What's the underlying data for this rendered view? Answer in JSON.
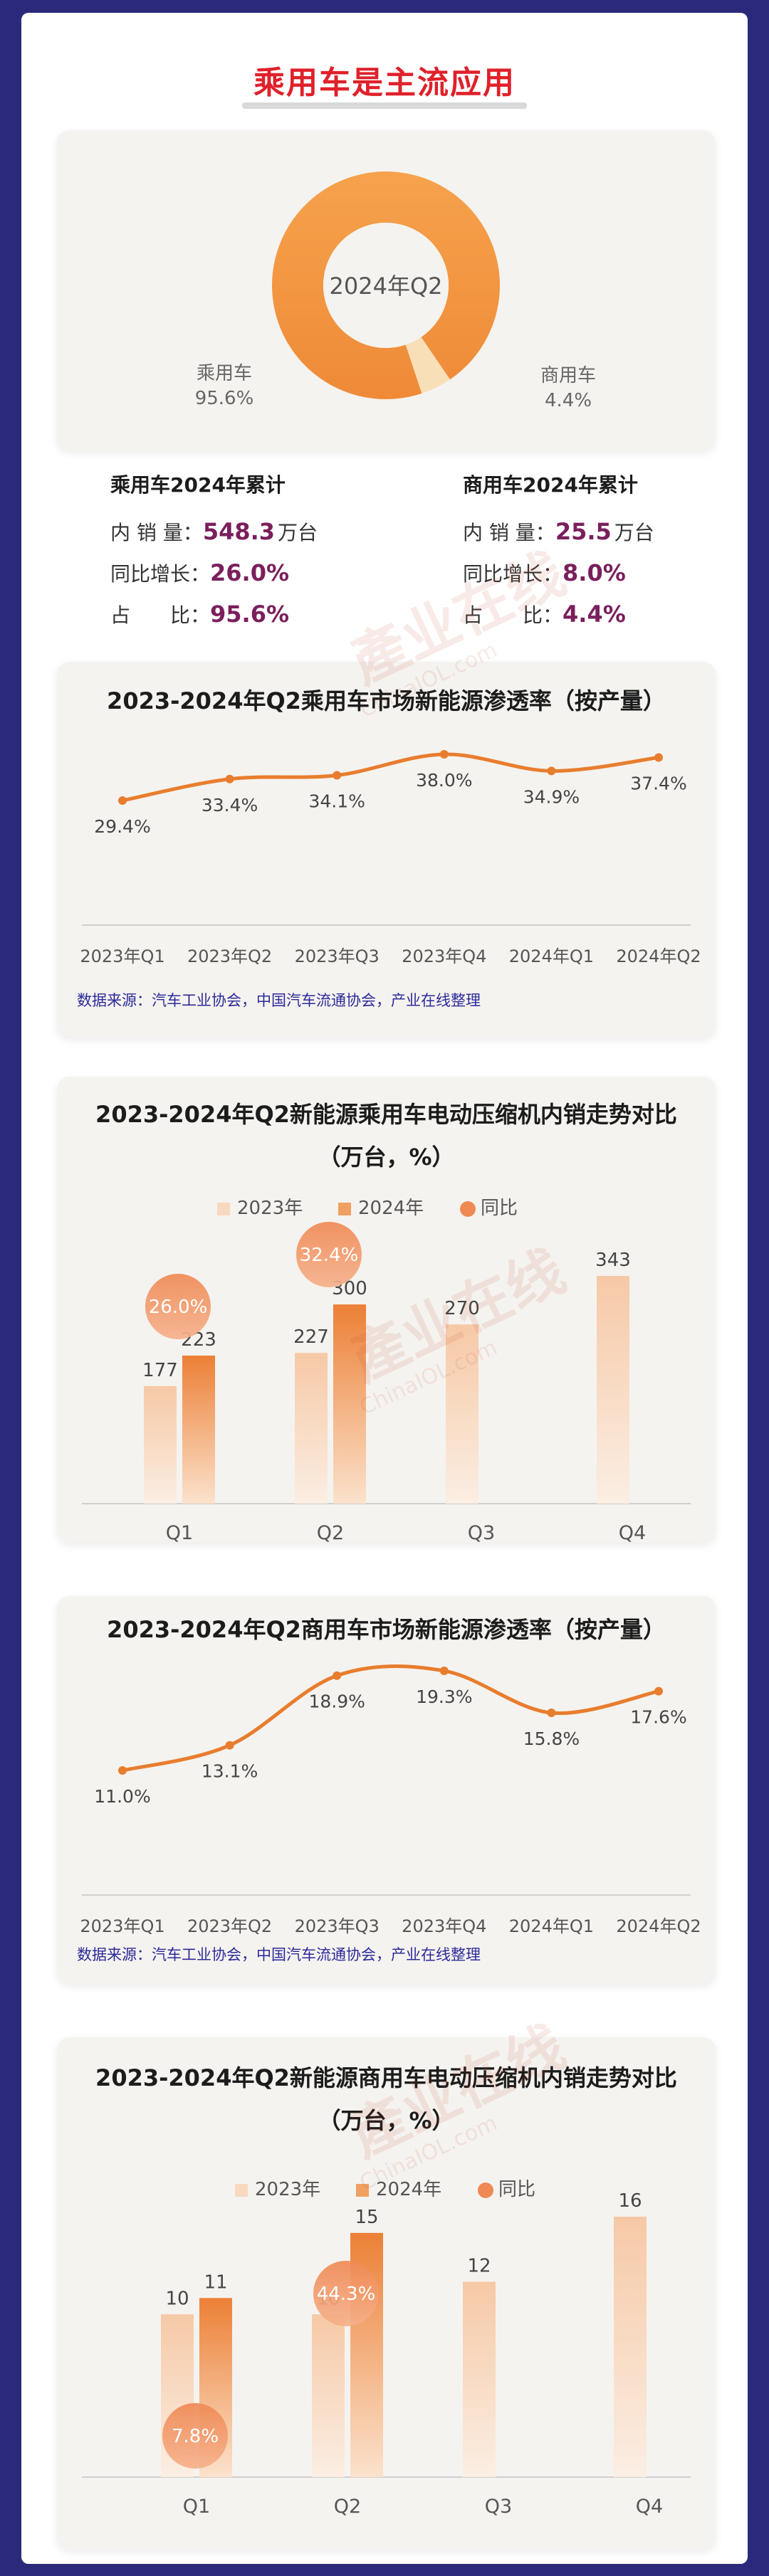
{
  "title": "乘用车是主流应用",
  "donut": {
    "center_label": "2024年Q2",
    "slices": [
      {
        "label": "乘用车",
        "pct": "95.6%",
        "value": 95.6,
        "color": "#f0933c"
      },
      {
        "label": "商用车",
        "pct": "4.4%",
        "value": 4.4,
        "color": "#f8dfb8"
      }
    ]
  },
  "stats": {
    "passenger": {
      "head": "乘用车2024年累计",
      "rows": [
        {
          "label": "内 销 量：",
          "value": "548.3",
          "unit": "万台"
        },
        {
          "label": "同比增长：",
          "value": "26.0%",
          "unit": ""
        },
        {
          "label": "占　　比：",
          "value": "95.6%",
          "unit": ""
        }
      ]
    },
    "commercial": {
      "head": "商用车2024年累计",
      "rows": [
        {
          "label": "内 销 量：",
          "value": "25.5",
          "unit": "万台"
        },
        {
          "label": "同比增长：",
          "value": "8.0%",
          "unit": ""
        },
        {
          "label": "占　　比：",
          "value": "4.4%",
          "unit": ""
        }
      ]
    }
  },
  "source_text": "数据来源：汽车工业协会，中国汽车流通协会，产业在线整理",
  "watermark": {
    "main": "产业在线",
    "sub": "ChinaIOL.com"
  },
  "colors": {
    "accent_orange": "#e87d2e",
    "light_peach": "#f8d9bf",
    "title_red": "#e0202a",
    "value_purple": "#7a1f5c",
    "frame": "#2b2a7a"
  },
  "chart_data": [
    {
      "type": "line",
      "title": "2023-2024年Q2乘用车市场新能源渗透率（按产量）",
      "categories": [
        "2023年Q1",
        "2023年Q2",
        "2023年Q3",
        "2023年Q4",
        "2024年Q1",
        "2024年Q2"
      ],
      "values": [
        29.4,
        33.4,
        34.1,
        38.0,
        34.9,
        37.4
      ],
      "labels": [
        "29.4%",
        "33.4%",
        "34.1%",
        "38.0%",
        "34.9%",
        "37.4%"
      ],
      "ylim": [
        0,
        45
      ]
    },
    {
      "type": "bar",
      "title": "2023-2024年Q2新能源乘用车电动压缩机内销走势对比",
      "subtitle": "（万台，%）",
      "legend": [
        "2023年",
        "2024年",
        "同比"
      ],
      "categories": [
        "Q1",
        "Q2",
        "Q3",
        "Q4"
      ],
      "series": [
        {
          "name": "2023年",
          "values": [
            177,
            227,
            270,
            343
          ]
        },
        {
          "name": "2024年",
          "values": [
            223,
            300,
            null,
            null
          ]
        }
      ],
      "yoy": [
        {
          "category": "Q1",
          "value": 26.0,
          "label": "26.0%"
        },
        {
          "category": "Q2",
          "value": 32.4,
          "label": "32.4%"
        }
      ],
      "ylim": [
        0,
        400
      ]
    },
    {
      "type": "line",
      "title": "2023-2024年Q2商用车市场新能源渗透率（按产量）",
      "categories": [
        "2023年Q1",
        "2023年Q2",
        "2023年Q3",
        "2023年Q4",
        "2024年Q1",
        "2024年Q2"
      ],
      "values": [
        11.0,
        13.1,
        18.9,
        19.3,
        15.8,
        17.6
      ],
      "labels": [
        "11.0%",
        "13.1%",
        "18.9%",
        "19.3%",
        "15.8%",
        "17.6%"
      ],
      "ylim": [
        0,
        22
      ]
    },
    {
      "type": "bar",
      "title": "2023-2024年Q2新能源商用车电动压缩机内销走势对比",
      "subtitle": "（万台，%）",
      "legend": [
        "2023年",
        "2024年",
        "同比"
      ],
      "categories": [
        "Q1",
        "Q2",
        "Q3",
        "Q4"
      ],
      "series": [
        {
          "name": "2023年",
          "values": [
            10,
            10,
            12,
            16
          ]
        },
        {
          "name": "2024年",
          "values": [
            11,
            15,
            null,
            null
          ]
        }
      ],
      "yoy": [
        {
          "category": "Q1",
          "value": 7.8,
          "label": "7.8%"
        },
        {
          "category": "Q2",
          "value": 44.3,
          "label": "44.3%"
        }
      ],
      "ylim": [
        0,
        17
      ]
    }
  ]
}
